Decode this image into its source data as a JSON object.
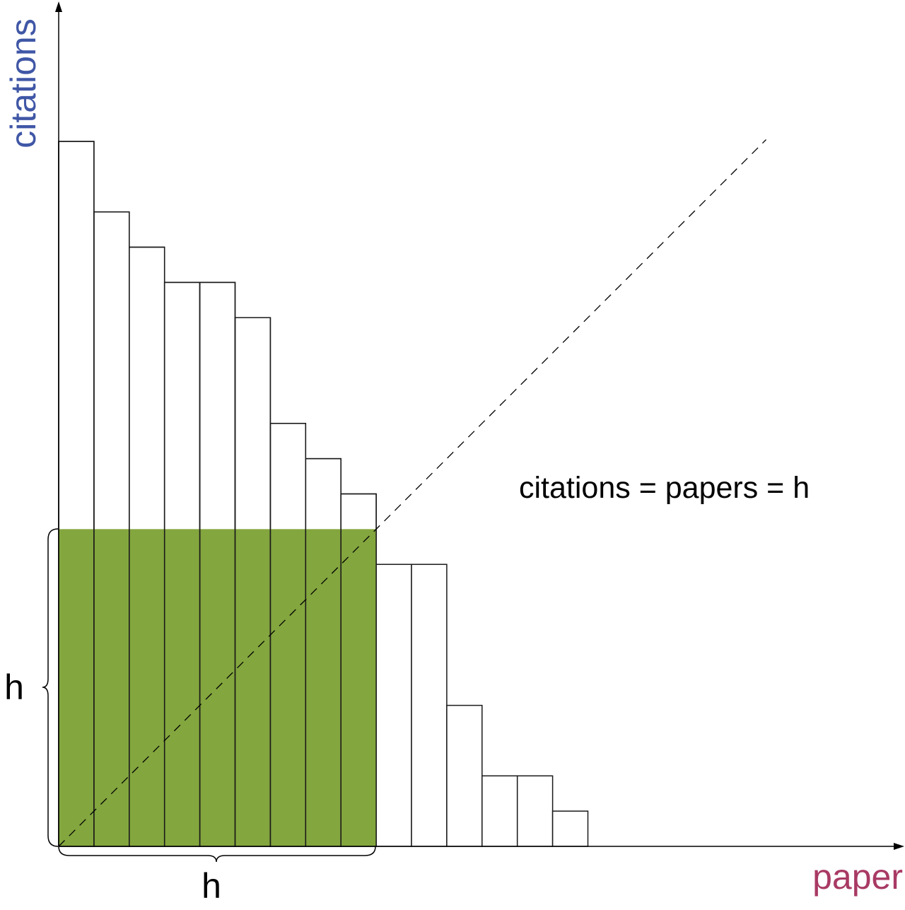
{
  "chart_data": {
    "type": "bar",
    "xlabel": "paper",
    "ylabel": "citations",
    "values": [
      20,
      18,
      17,
      16,
      16,
      15,
      12,
      11,
      10,
      8,
      8,
      4,
      2,
      2,
      1
    ],
    "h_index": 9,
    "annotation": "citations = papers = h",
    "h_label_x": "h",
    "h_label_y": "h",
    "highlight_color": "#83a63e",
    "bar_fill": "#ffffff",
    "xlabel_color": "#a83a64",
    "ylabel_color": "#4057a6",
    "grid": false,
    "legend": "none"
  }
}
